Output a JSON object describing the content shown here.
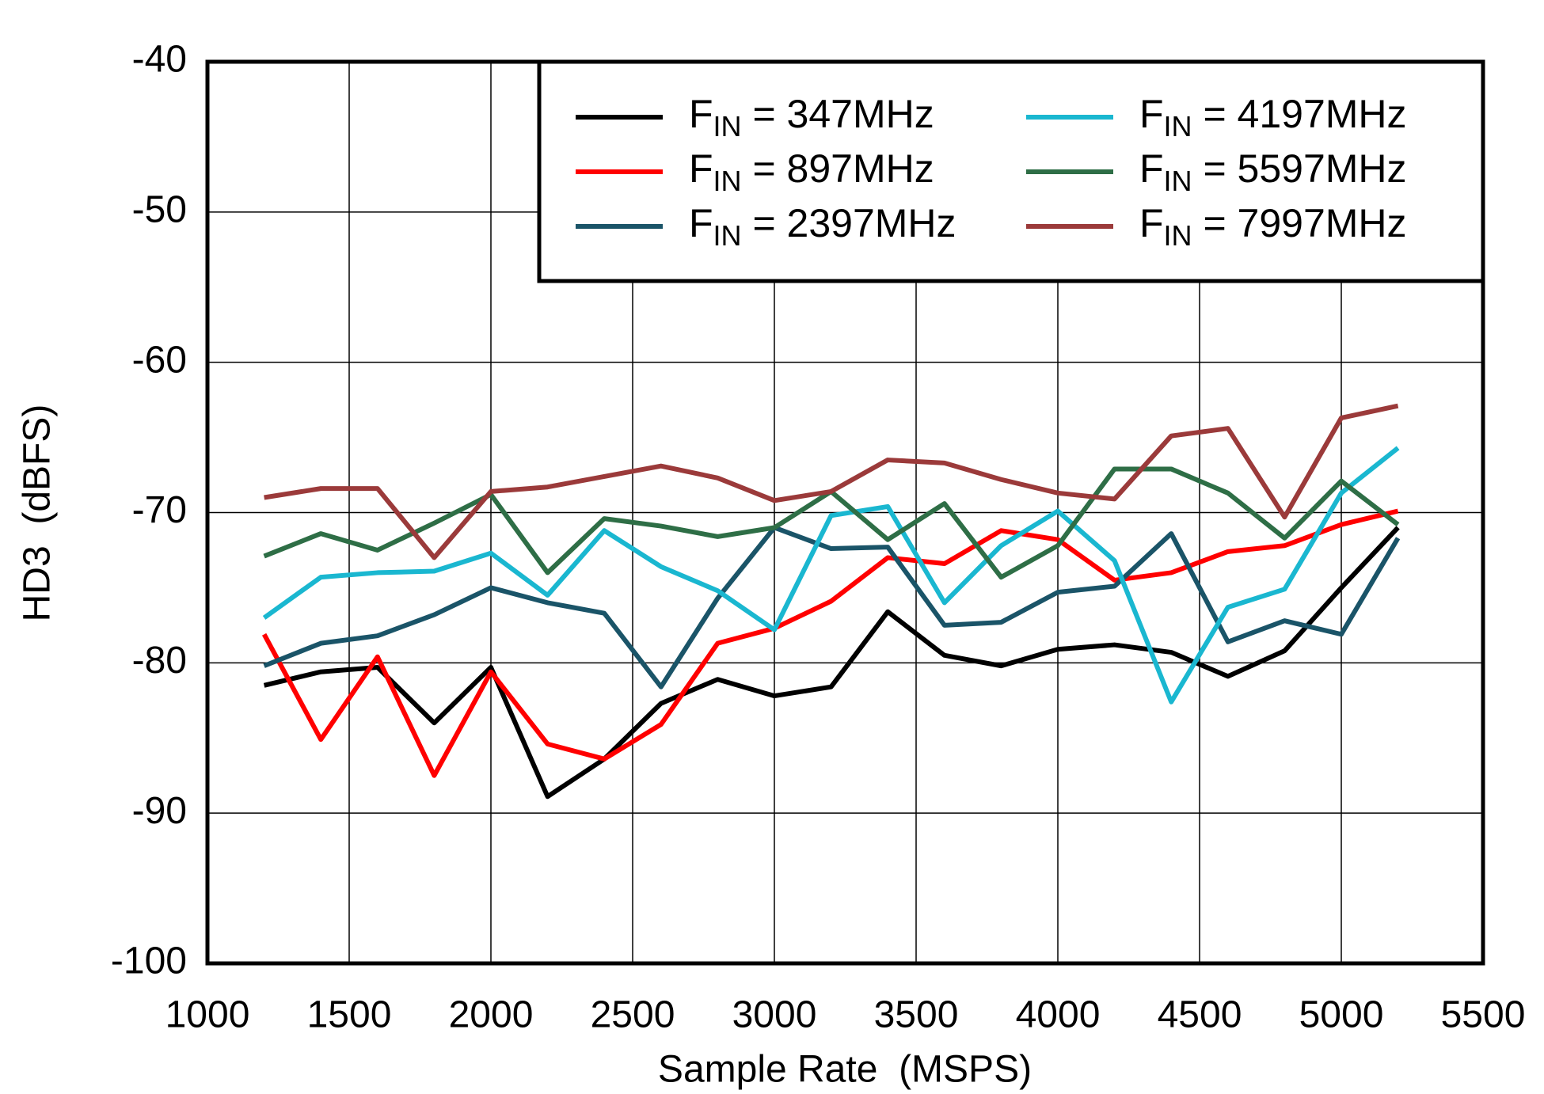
{
  "chart_data": {
    "type": "line",
    "x_label": "Sample Rate  (MSPS)",
    "y_label": "HD3  (dBFS)",
    "x": [
      1200,
      1400,
      1600,
      1800,
      2000,
      2200,
      2400,
      2600,
      2800,
      3000,
      3200,
      3400,
      3600,
      3800,
      4000,
      4200,
      4400,
      4600,
      4800,
      5000,
      5200
    ],
    "series": [
      {
        "name": "FIN = 347MHz",
        "color": "#000000",
        "values": [
          -81.5,
          -80.6,
          -80.3,
          -84,
          -80.3,
          -88.9,
          -86.4,
          -82.7,
          -81.1,
          -82.2,
          -81.6,
          -76.6,
          -79.5,
          -80.2,
          -79.1,
          -78.8,
          -79.3,
          -80.9,
          -79.2,
          -75,
          -71
        ]
      },
      {
        "name": "FIN = 897MHz",
        "color": "#ff0000",
        "values": [
          -78.1,
          -85.1,
          -79.6,
          -87.5,
          -80.6,
          -85.4,
          -86.4,
          -84.1,
          -78.7,
          -77.7,
          -75.9,
          -73,
          -73.4,
          -71.2,
          -71.8,
          -74.5,
          -74,
          -72.6,
          -72.2,
          -70.8,
          -69.9
        ]
      },
      {
        "name": "FIN = 2397MHz",
        "color": "#1a5468",
        "values": [
          -80.2,
          -78.7,
          -78.2,
          -76.8,
          -75,
          -76,
          -76.7,
          -81.6,
          -75.7,
          -71,
          -72.4,
          -72.3,
          -77.5,
          -77.3,
          -75.3,
          -74.9,
          -71.4,
          -78.6,
          -77.2,
          -78.1,
          -71.7
        ]
      },
      {
        "name": "FIN = 4197MHz",
        "color": "#1ab7d0",
        "values": [
          -77,
          -74.3,
          -74,
          -73.9,
          -72.7,
          -75.5,
          -71.2,
          -73.6,
          -75.2,
          -77.8,
          -70.2,
          -69.6,
          -76,
          -72.2,
          -69.9,
          -73.2,
          -82.6,
          -76.3,
          -75.1,
          -68.7,
          -65.7
        ]
      },
      {
        "name": "FIN = 5597MHz",
        "color": "#2e6e46",
        "values": [
          -72.9,
          -71.4,
          -72.5,
          -70.7,
          -68.8,
          -74,
          -70.4,
          -70.9,
          -71.6,
          -71,
          -68.6,
          -71.8,
          -69.4,
          -74.3,
          -72.2,
          -67.1,
          -67.1,
          -68.7,
          -71.7,
          -67.9,
          -70.8
        ]
      },
      {
        "name": "FIN = 7997MHz",
        "color": "#9b3a3a",
        "values": [
          -69,
          -68.4,
          -68.4,
          -73,
          -68.6,
          -68.3,
          -67.6,
          -66.9,
          -67.7,
          -69.2,
          -68.6,
          -66.5,
          -66.7,
          -67.8,
          -68.7,
          -69.1,
          -64.9,
          -64.4,
          -70.3,
          -63.7,
          -62.9
        ]
      }
    ],
    "xlim": [
      1000,
      5500
    ],
    "xticks": [
      1000,
      1500,
      2000,
      2500,
      3000,
      3500,
      4000,
      4500,
      5000,
      5500
    ],
    "ylim": [
      -100,
      -40
    ],
    "yticks": [
      -40,
      -50,
      -60,
      -70,
      -80,
      -90,
      -100
    ],
    "grid": true,
    "legend": "upper right"
  }
}
